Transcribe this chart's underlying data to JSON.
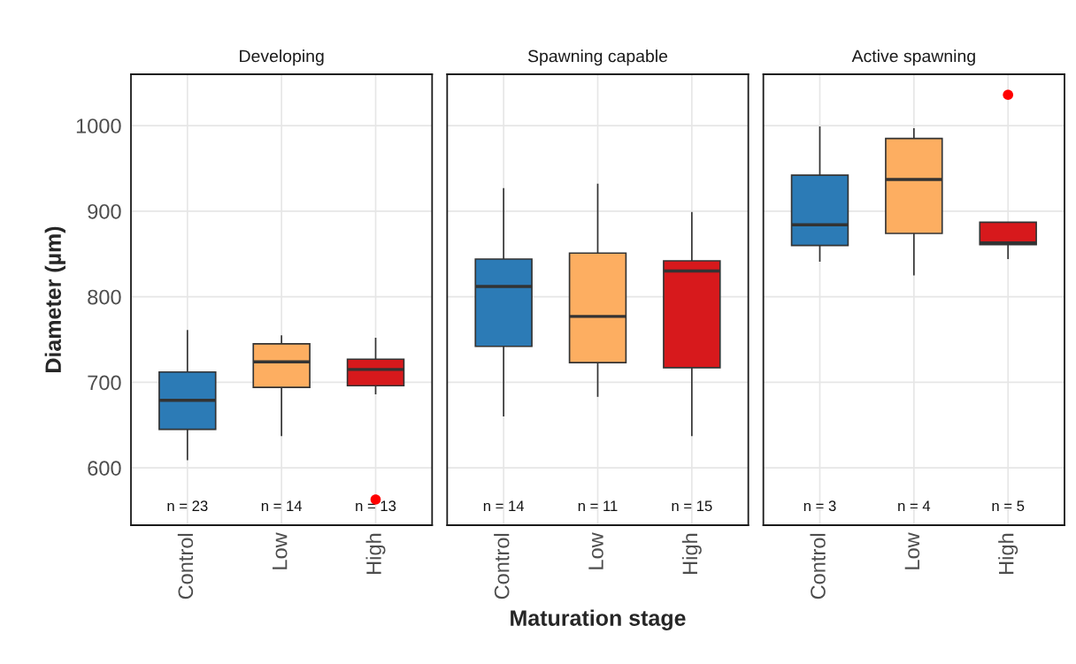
{
  "chart_data": [
    {
      "type": "box",
      "title": "Developing",
      "ylabel": "Diameter (µm)",
      "categories": [
        "Control",
        "Low",
        "High"
      ],
      "colors": [
        "#2c7bb6",
        "#fdae61",
        "#d7191c"
      ],
      "boxes": [
        {
          "low": 609,
          "q1": 645,
          "median": 679,
          "q3": 712,
          "high": 761
        },
        {
          "low": 637,
          "q1": 694,
          "median": 724,
          "q3": 745,
          "high": 755
        },
        {
          "low": 686,
          "q1": 696,
          "median": 715,
          "q3": 727,
          "high": 752
        }
      ],
      "series": [
        {
          "type": "scatter",
          "color": "#ff0000",
          "x": [
            "High"
          ],
          "values": [
            563
          ]
        }
      ],
      "annotations": [
        "n = 23",
        "n = 14",
        "n = 13"
      ],
      "ylim": [
        533,
        1060
      ],
      "yticks": [
        600,
        700,
        800,
        900,
        1000
      ],
      "grid": true,
      "legend": false
    },
    {
      "type": "box",
      "title": "Spawning capable",
      "xlabel": "Maturation stage",
      "categories": [
        "Control",
        "Low",
        "High"
      ],
      "colors": [
        "#2c7bb6",
        "#fdae61",
        "#d7191c"
      ],
      "boxes": [
        {
          "low": 660,
          "q1": 742,
          "median": 812,
          "q3": 844,
          "high": 927
        },
        {
          "low": 683,
          "q1": 723,
          "median": 777,
          "q3": 851,
          "high": 932
        },
        {
          "low": 637,
          "q1": 717,
          "median": 830,
          "q3": 842,
          "high": 899
        }
      ],
      "annotations": [
        "n = 14",
        "n = 11",
        "n = 15"
      ],
      "ylim": [
        533,
        1060
      ],
      "yticks": [
        600,
        700,
        800,
        900,
        1000
      ],
      "tick_labels": "x",
      "grid": true,
      "legend": false
    },
    {
      "type": "box",
      "title": "Active spawning",
      "categories": [
        "Control",
        "Low",
        "High"
      ],
      "colors": [
        "#2c7bb6",
        "#fdae61",
        "#d7191c"
      ],
      "boxes": [
        {
          "low": 841,
          "q1": 860,
          "median": 884,
          "q3": 942,
          "high": 999
        },
        {
          "low": 825,
          "q1": 874,
          "median": 937,
          "q3": 985,
          "high": 997
        },
        {
          "low": 844,
          "q1": 861,
          "median": 863,
          "q3": 887,
          "high": 887
        }
      ],
      "series": [
        {
          "type": "scatter",
          "color": "#ff0000",
          "x": [
            "High"
          ],
          "values": [
            1036
          ]
        }
      ],
      "annotations": [
        "n = 3",
        "n = 4",
        "n = 5"
      ],
      "ylim": [
        533,
        1060
      ],
      "yticks": [
        600,
        700,
        800,
        900,
        1000
      ],
      "tick_labels": "x",
      "grid": true,
      "legend": false
    }
  ]
}
